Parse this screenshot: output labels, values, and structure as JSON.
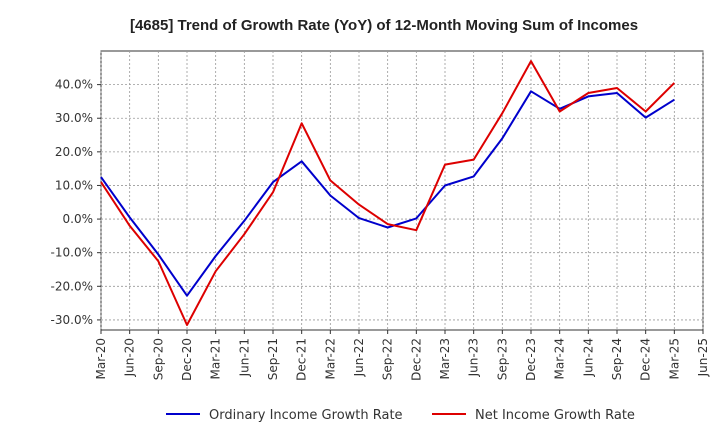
{
  "chart_data": {
    "type": "line",
    "title": "[4685]  Trend of Growth Rate (YoY) of 12-Month Moving Sum of Incomes",
    "xlabel": "",
    "ylabel": "",
    "x": [
      "Mar-20",
      "Jun-20",
      "Sep-20",
      "Dec-20",
      "Mar-21",
      "Jun-21",
      "Sep-21",
      "Dec-21",
      "Mar-22",
      "Jun-22",
      "Sep-22",
      "Dec-22",
      "Mar-23",
      "Jun-23",
      "Sep-23",
      "Dec-23",
      "Mar-24",
      "Jun-24",
      "Sep-24",
      "Dec-24",
      "Mar-25",
      "Jun-25"
    ],
    "ylim": [
      -33,
      50
    ],
    "yticks": [
      -30,
      -20,
      -10,
      0,
      10,
      20,
      30,
      40
    ],
    "ytick_labels": [
      "-30.0%",
      "-20.0%",
      "-10.0%",
      "0.0%",
      "10.0%",
      "20.0%",
      "30.0%",
      "40.0%"
    ],
    "grid": true,
    "legend_position": "bottom",
    "series": [
      {
        "name": "Ordinary Income Growth Rate",
        "color": "#0000cc",
        "values": [
          12.5,
          0.5,
          -10.5,
          -22.8,
          -11.0,
          -0.5,
          11.0,
          17.2,
          7.0,
          0.3,
          -2.5,
          0.2,
          10.0,
          12.7,
          24.0,
          38.0,
          32.8,
          36.5,
          37.5,
          30.2,
          35.5,
          null
        ]
      },
      {
        "name": "Net Income Growth Rate",
        "color": "#dd0000",
        "values": [
          11.0,
          -2.0,
          -12.5,
          -31.5,
          -15.5,
          -4.5,
          8.0,
          28.5,
          11.5,
          4.3,
          -1.5,
          -3.3,
          16.2,
          17.7,
          31.5,
          47.0,
          32.0,
          37.5,
          39.0,
          32.0,
          40.5,
          null
        ]
      }
    ]
  }
}
